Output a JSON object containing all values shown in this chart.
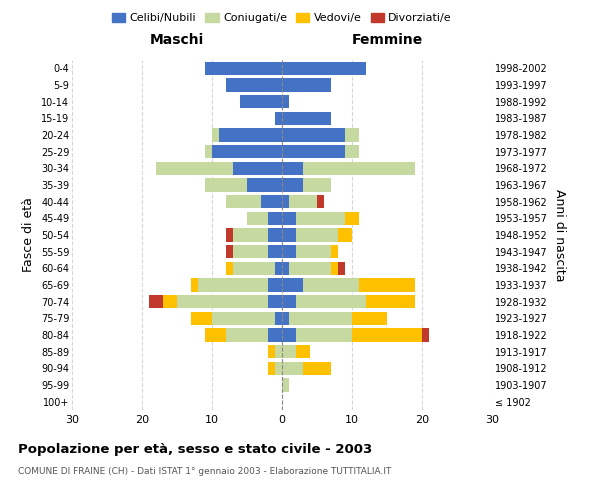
{
  "age_groups": [
    "100+",
    "95-99",
    "90-94",
    "85-89",
    "80-84",
    "75-79",
    "70-74",
    "65-69",
    "60-64",
    "55-59",
    "50-54",
    "45-49",
    "40-44",
    "35-39",
    "30-34",
    "25-29",
    "20-24",
    "15-19",
    "10-14",
    "5-9",
    "0-4"
  ],
  "birth_years": [
    "≤ 1902",
    "1903-1907",
    "1908-1912",
    "1913-1917",
    "1918-1922",
    "1923-1927",
    "1928-1932",
    "1933-1937",
    "1938-1942",
    "1943-1947",
    "1948-1952",
    "1953-1957",
    "1958-1962",
    "1963-1967",
    "1968-1972",
    "1973-1977",
    "1978-1982",
    "1983-1987",
    "1988-1992",
    "1993-1997",
    "1998-2002"
  ],
  "male_celibi": [
    0,
    0,
    0,
    0,
    2,
    1,
    2,
    2,
    1,
    2,
    2,
    2,
    3,
    5,
    7,
    10,
    9,
    1,
    6,
    8,
    11
  ],
  "male_coniugati": [
    0,
    0,
    1,
    1,
    6,
    9,
    13,
    10,
    6,
    5,
    5,
    3,
    5,
    6,
    11,
    1,
    1,
    0,
    0,
    0,
    0
  ],
  "male_vedovi": [
    0,
    0,
    1,
    1,
    3,
    3,
    2,
    1,
    1,
    0,
    0,
    0,
    0,
    0,
    0,
    0,
    0,
    0,
    0,
    0,
    0
  ],
  "male_divorziati": [
    0,
    0,
    0,
    0,
    0,
    0,
    2,
    0,
    0,
    1,
    1,
    0,
    0,
    0,
    0,
    0,
    0,
    0,
    0,
    0,
    0
  ],
  "female_celibi": [
    0,
    0,
    0,
    0,
    2,
    1,
    2,
    3,
    1,
    2,
    2,
    2,
    1,
    3,
    3,
    9,
    9,
    7,
    1,
    7,
    12
  ],
  "female_coniugati": [
    0,
    1,
    3,
    2,
    8,
    9,
    10,
    8,
    6,
    5,
    6,
    7,
    4,
    4,
    16,
    2,
    2,
    0,
    0,
    0,
    0
  ],
  "female_vedovi": [
    0,
    0,
    4,
    2,
    10,
    5,
    7,
    8,
    1,
    1,
    2,
    2,
    0,
    0,
    0,
    0,
    0,
    0,
    0,
    0,
    0
  ],
  "female_divorziati": [
    0,
    0,
    0,
    0,
    1,
    0,
    0,
    0,
    1,
    0,
    0,
    0,
    1,
    0,
    0,
    0,
    0,
    0,
    0,
    0,
    0
  ],
  "colors": {
    "celibi": "#4472c4",
    "coniugati": "#c5d9a0",
    "vedovi": "#ffc000",
    "divorziati": "#c0392b"
  },
  "legend_labels": [
    "Celibi/Nubili",
    "Coniugati/e",
    "Vedovi/e",
    "Divorziati/e"
  ],
  "title": "Popolazione per età, sesso e stato civile - 2003",
  "subtitle": "COMUNE DI FRAINE (CH) - Dati ISTAT 1° gennaio 2003 - Elaborazione TUTTITALIA.IT",
  "ylabel_left": "Fasce di età",
  "ylabel_right": "Anni di nascita",
  "xlabel_left": "Maschi",
  "xlabel_right": "Femmine",
  "xlim": 30,
  "background_color": "#ffffff"
}
